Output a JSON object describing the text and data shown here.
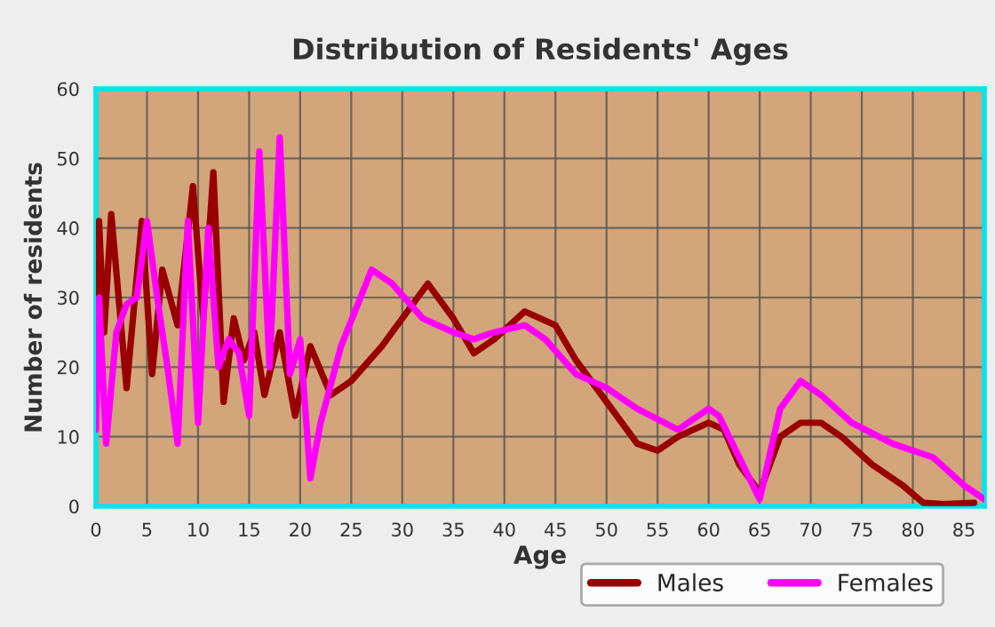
{
  "chart_data": {
    "type": "line",
    "title": "Distribution of Residents' Ages",
    "xlabel": "Age",
    "ylabel": "Number of residents",
    "xlim": [
      0,
      87
    ],
    "xticks": [
      0,
      5,
      10,
      15,
      20,
      25,
      30,
      35,
      40,
      45,
      50,
      55,
      60,
      65,
      70,
      75,
      80,
      85
    ],
    "ylim": [
      0,
      60
    ],
    "yticks": [
      0,
      10,
      20,
      30,
      40,
      50,
      60
    ],
    "grid": true,
    "legend": "bottom",
    "series": [
      {
        "name": "Males",
        "color": "#990000",
        "x": [
          0,
          0.3,
          0.8,
          1.5,
          3,
          4.5,
          5.5,
          6.5,
          8,
          9.5,
          10.5,
          11.5,
          12.5,
          13.5,
          14.5,
          15.5,
          16.5,
          18,
          19.5,
          21,
          23,
          25,
          28,
          31,
          32.5,
          35,
          37,
          39,
          42,
          45,
          47,
          50,
          53,
          55,
          57,
          60,
          61.5,
          63,
          65,
          67,
          69,
          71,
          73,
          76,
          79,
          81,
          83,
          86
        ],
        "values": [
          30,
          41,
          25,
          42,
          17,
          41,
          19,
          34,
          26,
          46,
          27,
          48,
          15,
          27,
          21,
          25,
          16,
          25,
          13,
          23,
          16,
          18,
          23,
          29,
          32,
          27,
          22,
          24,
          28,
          26,
          21,
          15,
          9,
          8,
          10,
          12,
          11,
          6,
          2,
          10,
          12,
          12,
          10,
          6,
          3,
          0.5,
          0.3,
          0.5
        ]
      },
      {
        "name": "Females",
        "color": "#ff00ff",
        "x": [
          0,
          0.3,
          1,
          2,
          3,
          4,
          5,
          6,
          7,
          8,
          9,
          10,
          11,
          12,
          13,
          14,
          15,
          16,
          17,
          18,
          19,
          20,
          21,
          22,
          24,
          27,
          29,
          32,
          35,
          37,
          39,
          42,
          44,
          47,
          50,
          53,
          57,
          60,
          61,
          63,
          65,
          67,
          69,
          71,
          74,
          78,
          82,
          85,
          87
        ],
        "values": [
          11,
          30,
          9,
          25,
          29,
          30,
          41,
          30,
          20,
          9,
          41,
          12,
          40,
          20,
          24,
          22,
          13,
          51,
          20,
          53,
          19,
          24,
          4,
          12,
          23,
          34,
          32,
          27,
          25,
          24,
          25,
          26,
          24,
          19,
          17,
          14,
          11,
          14,
          13,
          7,
          1,
          14,
          18,
          16,
          12,
          9,
          7,
          3,
          1
        ]
      }
    ]
  }
}
